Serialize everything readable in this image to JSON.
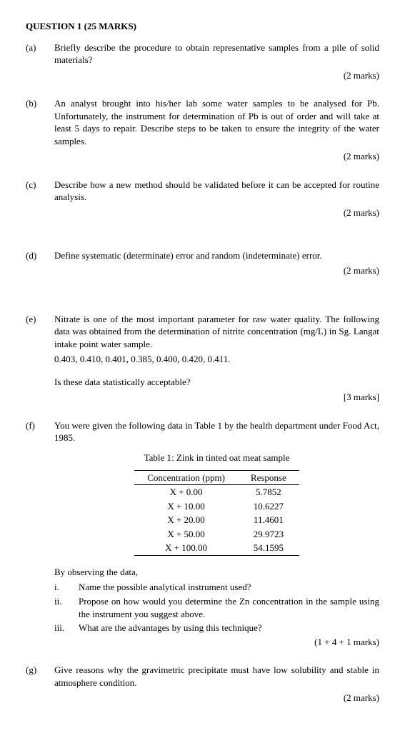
{
  "title": "QUESTION 1 (25 MARKS)",
  "parts": {
    "a": {
      "label": "(a)",
      "text": "Briefly describe the procedure to obtain representative samples from a pile of solid materials?",
      "marks": "(2 marks)"
    },
    "b": {
      "label": "(b)",
      "text": "An analyst brought into his/her lab some water samples to be analysed for Pb. Unfortunately, the instrument for determination of Pb is out of order and will take at least 5 days to repair. Describe steps to be taken to ensure the integrity of the water samples.",
      "marks": "(2 marks)"
    },
    "c": {
      "label": "(c)",
      "text": "Describe how a new method should be validated before it can be accepted for routine analysis.",
      "marks": "(2 marks)"
    },
    "d": {
      "label": "(d)",
      "text": "Define systematic (determinate) error and random (indeterminate) error.",
      "marks": "(2 marks)"
    },
    "e": {
      "label": "(e)",
      "text1": "Nitrate is one of the most important parameter for raw water quality. The following data was obtained from the determination of nitrite concentration (mg/L) in Sg. Langat intake point water sample.",
      "data": "0.403, 0.410, 0.401, 0.385, 0.400, 0.420, 0.411.",
      "text2": "Is these data statistically acceptable?",
      "marks": "[3 marks]"
    },
    "f": {
      "label": "(f)",
      "text": "You were given the following data in Table 1 by the health department under Food Act, 1985.",
      "table_caption": "Table 1: Zink in tinted oat meat sample",
      "table": {
        "columns": [
          "Concentration (ppm)",
          "Response"
        ],
        "rows": [
          [
            "X + 0.00",
            "5.7852"
          ],
          [
            "X + 10.00",
            "10.6227"
          ],
          [
            "X + 20.00",
            "11.4601"
          ],
          [
            "X + 50.00",
            "29.9723"
          ],
          [
            "X + 100.00",
            "54.1595"
          ]
        ]
      },
      "observe": "By observing the data,",
      "subs": {
        "i": {
          "label": "i.",
          "text": "Name the possible analytical instrument used?"
        },
        "ii": {
          "label": "ii.",
          "text": "Propose on how would you determine the Zn concentration in the sample using the instrument you suggest above."
        },
        "iii": {
          "label": "iii.",
          "text": "What are the advantages by using this technique?"
        }
      },
      "marks": "(1 + 4 + 1 marks)"
    },
    "g": {
      "label": "(g)",
      "text": "Give reasons why the gravimetric precipitate must have low solubility and stable in atmosphere condition.",
      "marks": "(2 marks)"
    }
  }
}
